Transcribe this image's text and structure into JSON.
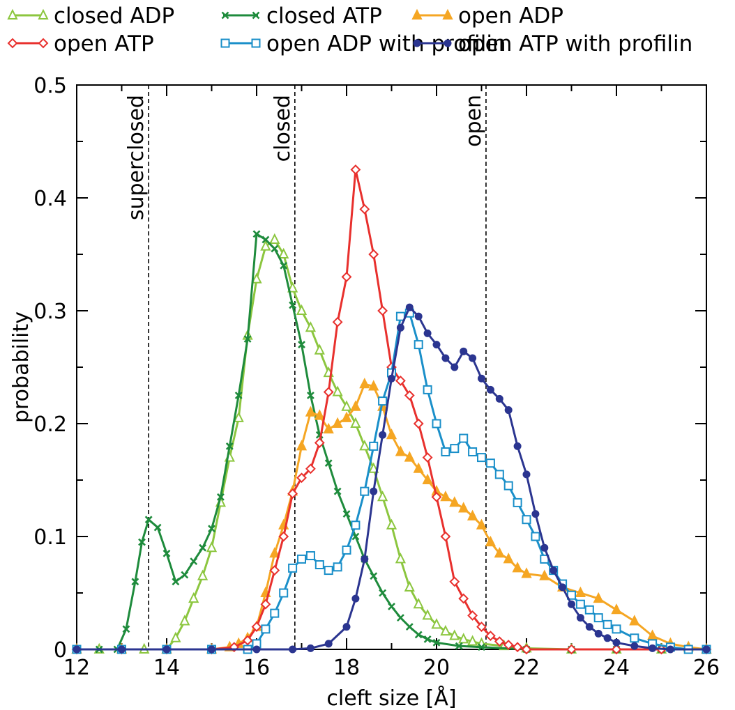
{
  "chart_data": {
    "type": "line",
    "title": "",
    "xlabel": "cleft size [Å]",
    "ylabel": "probability",
    "xlim": [
      12,
      26
    ],
    "ylim": [
      0,
      0.5
    ],
    "xticks": [
      12,
      14,
      16,
      18,
      20,
      22,
      24,
      26
    ],
    "xtick_labels": [
      "12",
      "14",
      "16",
      "18",
      "20",
      "22",
      "24",
      "26"
    ],
    "yticks": [
      0,
      0.1,
      0.2,
      0.3,
      0.4,
      0.5
    ],
    "ytick_labels": [
      "0",
      "0.1",
      "0.2",
      "0.3",
      "0.4",
      "0.5"
    ],
    "grid": false,
    "legend_position": "top, outside plot",
    "reference_lines": [
      {
        "x": 13.6,
        "label": "superclosed"
      },
      {
        "x": 16.85,
        "label": "closed"
      },
      {
        "x": 21.1,
        "label": "open"
      }
    ],
    "series": [
      {
        "name": "closed ADP",
        "color": "#8cc63f",
        "marker": "triangle-open",
        "points": [
          [
            12,
            0
          ],
          [
            12.5,
            0
          ],
          [
            13,
            0
          ],
          [
            13.5,
            0
          ],
          [
            14,
            0
          ],
          [
            14.2,
            0.01
          ],
          [
            14.4,
            0.025
          ],
          [
            14.6,
            0.045
          ],
          [
            14.8,
            0.065
          ],
          [
            15,
            0.09
          ],
          [
            15.2,
            0.13
          ],
          [
            15.4,
            0.17
          ],
          [
            15.6,
            0.205
          ],
          [
            15.8,
            0.278
          ],
          [
            16,
            0.328
          ],
          [
            16.2,
            0.357
          ],
          [
            16.4,
            0.363
          ],
          [
            16.6,
            0.35
          ],
          [
            16.8,
            0.32
          ],
          [
            17,
            0.3
          ],
          [
            17.2,
            0.285
          ],
          [
            17.4,
            0.265
          ],
          [
            17.6,
            0.245
          ],
          [
            17.8,
            0.228
          ],
          [
            18,
            0.215
          ],
          [
            18.2,
            0.2
          ],
          [
            18.4,
            0.18
          ],
          [
            18.6,
            0.16
          ],
          [
            18.8,
            0.135
          ],
          [
            19,
            0.11
          ],
          [
            19.2,
            0.08
          ],
          [
            19.4,
            0.055
          ],
          [
            19.6,
            0.04
          ],
          [
            19.8,
            0.03
          ],
          [
            20,
            0.022
          ],
          [
            20.2,
            0.016
          ],
          [
            20.4,
            0.012
          ],
          [
            20.6,
            0.009
          ],
          [
            20.8,
            0.007
          ],
          [
            21,
            0.005
          ],
          [
            21.5,
            0.003
          ],
          [
            22,
            0.001
          ],
          [
            23,
            0
          ],
          [
            24,
            0
          ],
          [
            25,
            0
          ],
          [
            26,
            0
          ]
        ]
      },
      {
        "name": "closed ATP",
        "color": "#1e8b3c",
        "marker": "x",
        "points": [
          [
            12,
            0
          ],
          [
            12.5,
            0
          ],
          [
            12.9,
            0
          ],
          [
            13.1,
            0.018
          ],
          [
            13.3,
            0.06
          ],
          [
            13.45,
            0.095
          ],
          [
            13.6,
            0.115
          ],
          [
            13.8,
            0.108
          ],
          [
            14,
            0.085
          ],
          [
            14.2,
            0.06
          ],
          [
            14.4,
            0.066
          ],
          [
            14.6,
            0.078
          ],
          [
            14.8,
            0.09
          ],
          [
            15,
            0.107
          ],
          [
            15.2,
            0.135
          ],
          [
            15.4,
            0.18
          ],
          [
            15.6,
            0.225
          ],
          [
            15.8,
            0.275
          ],
          [
            16,
            0.368
          ],
          [
            16.2,
            0.363
          ],
          [
            16.4,
            0.355
          ],
          [
            16.6,
            0.34
          ],
          [
            16.8,
            0.305
          ],
          [
            17,
            0.27
          ],
          [
            17.2,
            0.225
          ],
          [
            17.4,
            0.19
          ],
          [
            17.6,
            0.165
          ],
          [
            17.8,
            0.14
          ],
          [
            18,
            0.12
          ],
          [
            18.2,
            0.1
          ],
          [
            18.4,
            0.08
          ],
          [
            18.6,
            0.065
          ],
          [
            18.8,
            0.05
          ],
          [
            19,
            0.038
          ],
          [
            19.2,
            0.028
          ],
          [
            19.4,
            0.02
          ],
          [
            19.6,
            0.013
          ],
          [
            19.8,
            0.009
          ],
          [
            20,
            0.006
          ],
          [
            20.5,
            0.003
          ],
          [
            21,
            0.002
          ],
          [
            22,
            0
          ],
          [
            23,
            0
          ],
          [
            24,
            0
          ],
          [
            25,
            0
          ],
          [
            26,
            0
          ]
        ]
      },
      {
        "name": "open ADP",
        "color": "#f5a623",
        "marker": "triangle",
        "points": [
          [
            12,
            0
          ],
          [
            13,
            0
          ],
          [
            14,
            0
          ],
          [
            15,
            0
          ],
          [
            15.4,
            0.002
          ],
          [
            15.6,
            0.005
          ],
          [
            15.8,
            0.01
          ],
          [
            16,
            0.02
          ],
          [
            16.2,
            0.05
          ],
          [
            16.4,
            0.085
          ],
          [
            16.6,
            0.11
          ],
          [
            16.8,
            0.14
          ],
          [
            17,
            0.18
          ],
          [
            17.2,
            0.21
          ],
          [
            17.4,
            0.207
          ],
          [
            17.6,
            0.195
          ],
          [
            17.8,
            0.2
          ],
          [
            18,
            0.205
          ],
          [
            18.2,
            0.215
          ],
          [
            18.4,
            0.235
          ],
          [
            18.6,
            0.233
          ],
          [
            18.8,
            0.215
          ],
          [
            19,
            0.19
          ],
          [
            19.2,
            0.175
          ],
          [
            19.4,
            0.17
          ],
          [
            19.6,
            0.16
          ],
          [
            19.8,
            0.15
          ],
          [
            20,
            0.14
          ],
          [
            20.2,
            0.135
          ],
          [
            20.4,
            0.13
          ],
          [
            20.6,
            0.125
          ],
          [
            20.8,
            0.118
          ],
          [
            21,
            0.11
          ],
          [
            21.2,
            0.095
          ],
          [
            21.4,
            0.085
          ],
          [
            21.6,
            0.08
          ],
          [
            21.8,
            0.072
          ],
          [
            22,
            0.067
          ],
          [
            22.4,
            0.065
          ],
          [
            22.8,
            0.055
          ],
          [
            23.2,
            0.05
          ],
          [
            23.6,
            0.045
          ],
          [
            24,
            0.035
          ],
          [
            24.4,
            0.025
          ],
          [
            24.8,
            0.012
          ],
          [
            25.2,
            0.005
          ],
          [
            25.6,
            0.002
          ],
          [
            26,
            0
          ]
        ]
      },
      {
        "name": "open ATP",
        "color": "#e8302d",
        "marker": "diamond-open",
        "points": [
          [
            12,
            0
          ],
          [
            13,
            0
          ],
          [
            14,
            0
          ],
          [
            15,
            0
          ],
          [
            15.5,
            0.002
          ],
          [
            15.8,
            0.008
          ],
          [
            16,
            0.02
          ],
          [
            16.2,
            0.04
          ],
          [
            16.4,
            0.07
          ],
          [
            16.6,
            0.1
          ],
          [
            16.8,
            0.138
          ],
          [
            17,
            0.152
          ],
          [
            17.2,
            0.16
          ],
          [
            17.4,
            0.183
          ],
          [
            17.6,
            0.228
          ],
          [
            17.8,
            0.29
          ],
          [
            18,
            0.33
          ],
          [
            18.2,
            0.425
          ],
          [
            18.4,
            0.39
          ],
          [
            18.6,
            0.35
          ],
          [
            18.8,
            0.3
          ],
          [
            19,
            0.25
          ],
          [
            19.2,
            0.238
          ],
          [
            19.4,
            0.225
          ],
          [
            19.6,
            0.2
          ],
          [
            19.8,
            0.17
          ],
          [
            20,
            0.135
          ],
          [
            20.2,
            0.1
          ],
          [
            20.4,
            0.06
          ],
          [
            20.6,
            0.045
          ],
          [
            20.8,
            0.03
          ],
          [
            21,
            0.02
          ],
          [
            21.2,
            0.012
          ],
          [
            21.4,
            0.007
          ],
          [
            21.6,
            0.004
          ],
          [
            21.8,
            0.002
          ],
          [
            22,
            0
          ],
          [
            23,
            0
          ],
          [
            24,
            0
          ],
          [
            25,
            0
          ],
          [
            26,
            0
          ]
        ]
      },
      {
        "name": "open ADP with profilin",
        "color": "#1a8fc9",
        "marker": "square-open",
        "points": [
          [
            12,
            0
          ],
          [
            13,
            0
          ],
          [
            14,
            0
          ],
          [
            15,
            0
          ],
          [
            15.8,
            0
          ],
          [
            16,
            0.005
          ],
          [
            16.2,
            0.018
          ],
          [
            16.4,
            0.032
          ],
          [
            16.6,
            0.05
          ],
          [
            16.8,
            0.072
          ],
          [
            17,
            0.08
          ],
          [
            17.2,
            0.083
          ],
          [
            17.4,
            0.075
          ],
          [
            17.6,
            0.07
          ],
          [
            17.8,
            0.073
          ],
          [
            18,
            0.088
          ],
          [
            18.2,
            0.11
          ],
          [
            18.4,
            0.14
          ],
          [
            18.6,
            0.18
          ],
          [
            18.8,
            0.22
          ],
          [
            19,
            0.245
          ],
          [
            19.2,
            0.295
          ],
          [
            19.4,
            0.298
          ],
          [
            19.6,
            0.27
          ],
          [
            19.8,
            0.23
          ],
          [
            20,
            0.2
          ],
          [
            20.2,
            0.175
          ],
          [
            20.4,
            0.178
          ],
          [
            20.6,
            0.187
          ],
          [
            20.8,
            0.175
          ],
          [
            21,
            0.17
          ],
          [
            21.2,
            0.165
          ],
          [
            21.4,
            0.155
          ],
          [
            21.6,
            0.145
          ],
          [
            21.8,
            0.13
          ],
          [
            22,
            0.115
          ],
          [
            22.2,
            0.1
          ],
          [
            22.4,
            0.08
          ],
          [
            22.6,
            0.07
          ],
          [
            22.8,
            0.058
          ],
          [
            23,
            0.048
          ],
          [
            23.2,
            0.04
          ],
          [
            23.4,
            0.035
          ],
          [
            23.6,
            0.028
          ],
          [
            23.8,
            0.022
          ],
          [
            24,
            0.018
          ],
          [
            24.4,
            0.01
          ],
          [
            24.8,
            0.005
          ],
          [
            25.2,
            0.002
          ],
          [
            25.6,
            0
          ],
          [
            26,
            0
          ]
        ]
      },
      {
        "name": "open ATP with profilin",
        "color": "#2b3590",
        "marker": "circle",
        "points": [
          [
            12,
            0
          ],
          [
            13,
            0
          ],
          [
            14,
            0
          ],
          [
            15,
            0
          ],
          [
            16,
            0
          ],
          [
            16.8,
            0
          ],
          [
            17.2,
            0.001
          ],
          [
            17.6,
            0.005
          ],
          [
            18,
            0.02
          ],
          [
            18.2,
            0.045
          ],
          [
            18.4,
            0.08
          ],
          [
            18.6,
            0.14
          ],
          [
            18.8,
            0.19
          ],
          [
            19,
            0.24
          ],
          [
            19.2,
            0.285
          ],
          [
            19.4,
            0.303
          ],
          [
            19.6,
            0.295
          ],
          [
            19.8,
            0.28
          ],
          [
            20,
            0.27
          ],
          [
            20.2,
            0.258
          ],
          [
            20.4,
            0.25
          ],
          [
            20.6,
            0.264
          ],
          [
            20.8,
            0.258
          ],
          [
            21,
            0.24
          ],
          [
            21.2,
            0.23
          ],
          [
            21.4,
            0.222
          ],
          [
            21.6,
            0.212
          ],
          [
            21.8,
            0.18
          ],
          [
            22,
            0.155
          ],
          [
            22.2,
            0.12
          ],
          [
            22.4,
            0.09
          ],
          [
            22.6,
            0.07
          ],
          [
            22.8,
            0.055
          ],
          [
            23,
            0.04
          ],
          [
            23.2,
            0.028
          ],
          [
            23.4,
            0.02
          ],
          [
            23.6,
            0.014
          ],
          [
            23.8,
            0.01
          ],
          [
            24,
            0.006
          ],
          [
            24.4,
            0.003
          ],
          [
            24.8,
            0.001
          ],
          [
            25.2,
            0
          ],
          [
            26,
            0
          ]
        ]
      }
    ]
  }
}
